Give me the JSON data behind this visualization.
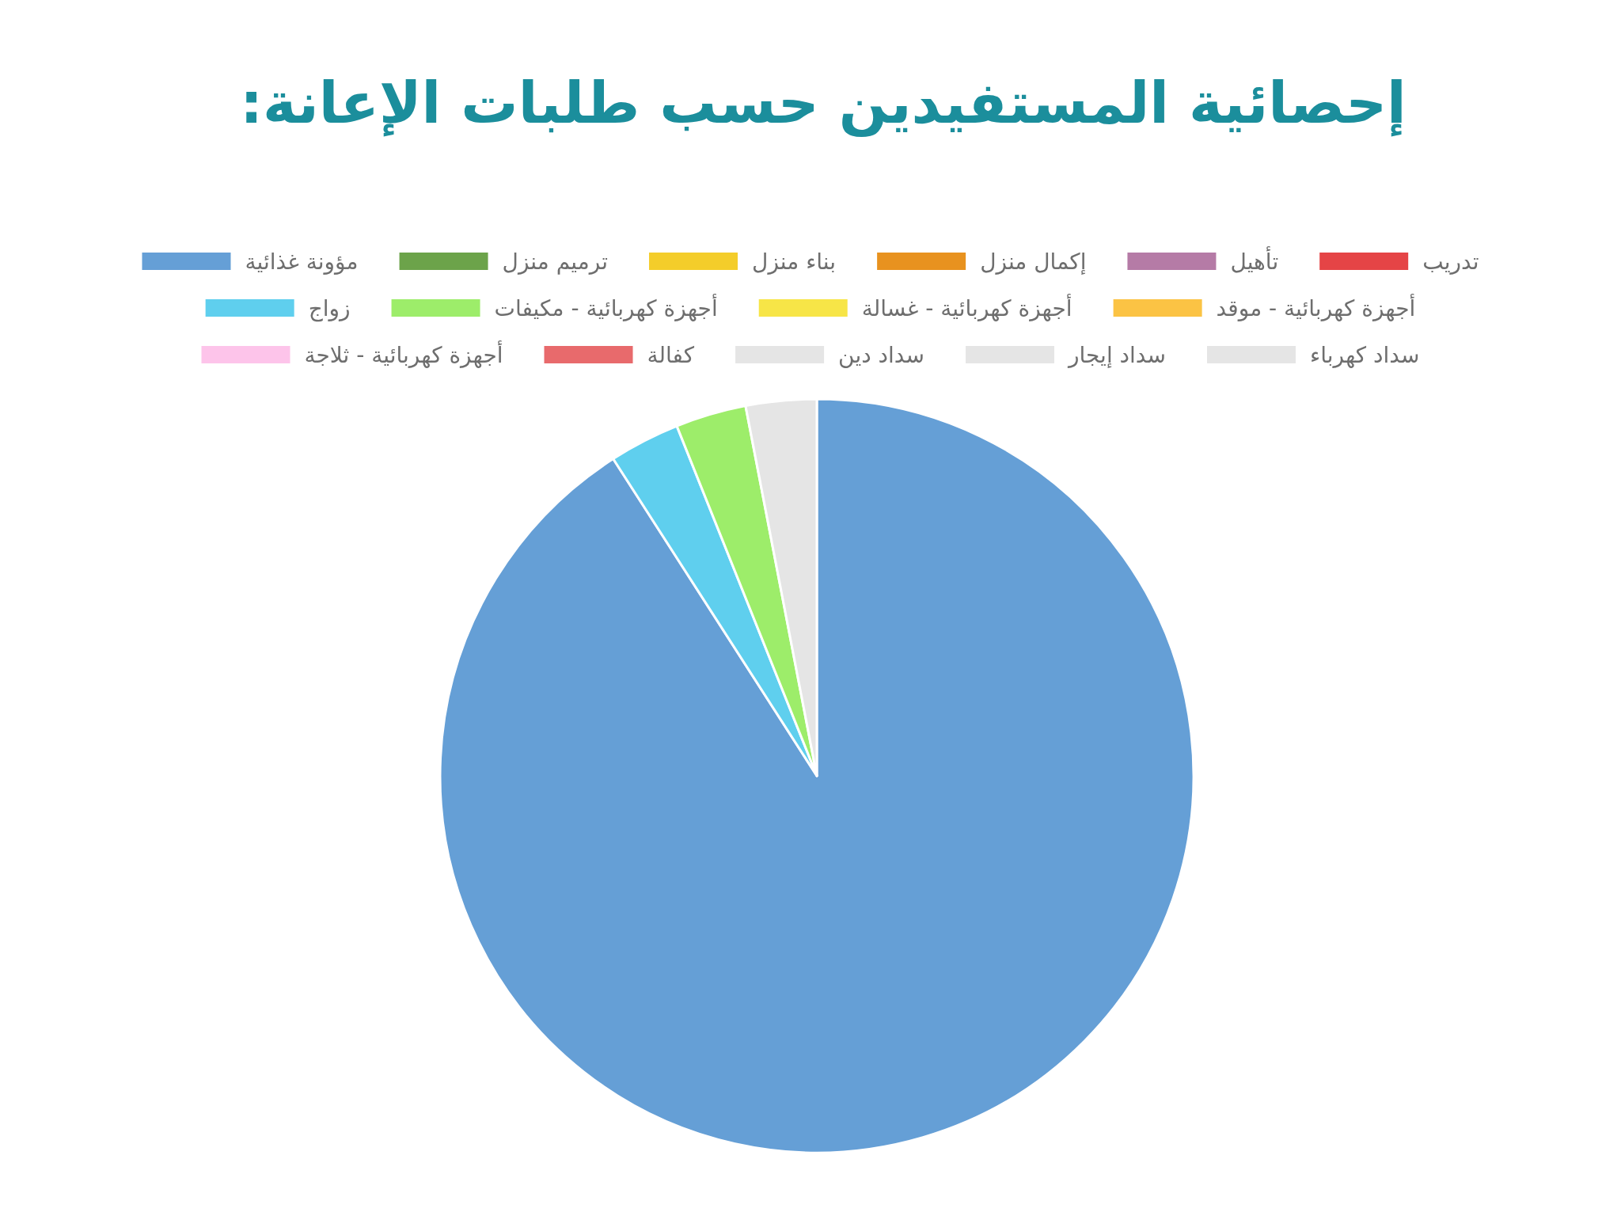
{
  "chart_data": {
    "type": "pie",
    "title": "إحصائية المستفيدين حسب طلبات الإعانة:",
    "legend": "top",
    "categories": [
      "مؤونة غذائية",
      "ترميم منزل",
      "بناء منزل",
      "إكمال منزل",
      "تأهيل",
      "تدريب",
      "زواج",
      "أجهزة كهربائية - مكيفات",
      "أجهزة كهربائية - غسالة",
      "أجهزة كهربائية - موقد",
      "أجهزة كهربائية - ثلاجة",
      "كفالة",
      "سداد دين",
      "سداد إيجار",
      "سداد كهرباء"
    ],
    "values": [
      90.91,
      0,
      0,
      0,
      0,
      0,
      3.03,
      3.03,
      0,
      0,
      0,
      0,
      0,
      0,
      3.03
    ],
    "colors": [
      "#659fd6",
      "#6ca34a",
      "#f4cd2a",
      "#e8921f",
      "#b57ba6",
      "#e54446",
      "#5fcfee",
      "#9ded6a",
      "#f7e547",
      "#fbc344",
      "#fdc4ea",
      "#e86a6c",
      "#e5e5e5",
      "#e5e5e5",
      "#e5e5e5"
    ]
  }
}
